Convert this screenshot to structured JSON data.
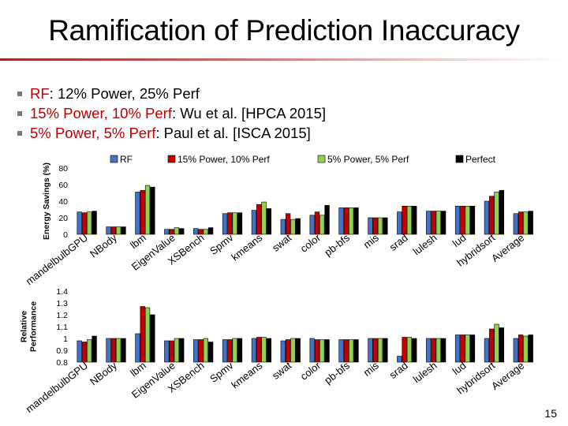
{
  "slide": {
    "title": "Ramification of Prediction Inaccuracy",
    "page_number": "15"
  },
  "bullets": [
    {
      "highlight": "RF",
      "rest": ": 12% Power, 25% Perf"
    },
    {
      "highlight": "15% Power, 10% Perf",
      "rest": ": Wu et al. [HPCA 2015]"
    },
    {
      "highlight": "5% Power, 5% Perf",
      "rest": ": Paul et al. [ISCA 2015]"
    }
  ],
  "colors": {
    "RF": "#4472c4",
    "15% Power, 10% Perf": "#c00000",
    "5% Power, 5% Perf": "#92d050",
    "Perfect": "#000000"
  },
  "chart_data": [
    {
      "type": "bar",
      "title": "",
      "ylabel": "Energy Savings (%)",
      "ylim": [
        0,
        80
      ],
      "yticks": [
        0,
        20,
        40,
        60,
        80
      ],
      "legend": [
        "RF",
        "15% Power, 10% Perf",
        "5% Power, 5% Perf",
        "Perfect"
      ],
      "categories": [
        "mandelbulbGPU",
        "NBody",
        "lbm",
        "EigenValue",
        "XSBench",
        "Spmv",
        "kmeans",
        "swat",
        "color",
        "pb-bfs",
        "mis",
        "srad",
        "lulesh",
        "lud",
        "hybridsort",
        "Average"
      ],
      "series": [
        {
          "name": "RF",
          "values": [
            27,
            9,
            51,
            6,
            7,
            25,
            29,
            18,
            23,
            32,
            20,
            27,
            28,
            34,
            40,
            25
          ]
        },
        {
          "name": "15% Power, 10% Perf",
          "values": [
            26,
            9,
            53,
            6,
            6,
            26,
            36,
            25,
            27,
            32,
            20,
            34,
            28,
            34,
            46,
            27
          ]
        },
        {
          "name": "5% Power, 5% Perf",
          "values": [
            27,
            9,
            59,
            8,
            6,
            26,
            39,
            18,
            23,
            32,
            20,
            34,
            28,
            34,
            51,
            27
          ]
        },
        {
          "name": "Perfect",
          "values": [
            28,
            9,
            57,
            7,
            8,
            26,
            31,
            19,
            35,
            32,
            20,
            34,
            28,
            34,
            53,
            28
          ]
        }
      ]
    },
    {
      "type": "bar",
      "title": "",
      "ylabel": "Relative Performance",
      "ylim": [
        0.8,
        1.4
      ],
      "yticks": [
        0.8,
        0.9,
        1,
        1.1,
        1.2,
        1.3,
        1.4
      ],
      "categories": [
        "mandelbulbGPU",
        "NBody",
        "lbm",
        "EigenValue",
        "XSBench",
        "Spmv",
        "kmeans",
        "swat",
        "color",
        "pb-bfs",
        "mis",
        "srad",
        "lulesh",
        "lud",
        "hybridsort",
        "Average"
      ],
      "series": [
        {
          "name": "RF",
          "values": [
            0.98,
            1.0,
            1.04,
            0.98,
            0.99,
            0.99,
            1.0,
            0.98,
            1.0,
            0.99,
            1.0,
            0.85,
            1.0,
            1.03,
            1.0,
            1.0
          ]
        },
        {
          "name": "15% Power, 10% Perf",
          "values": [
            0.97,
            1.0,
            1.27,
            0.98,
            0.99,
            0.99,
            1.01,
            0.99,
            0.99,
            0.99,
            1.0,
            1.01,
            1.0,
            1.03,
            1.08,
            1.03
          ]
        },
        {
          "name": "5% Power, 5% Perf",
          "values": [
            0.99,
            1.0,
            1.26,
            1.0,
            1.0,
            1.0,
            1.01,
            1.0,
            0.99,
            0.99,
            1.0,
            1.01,
            1.0,
            1.03,
            1.12,
            1.02
          ]
        },
        {
          "name": "Perfect",
          "values": [
            1.02,
            1.0,
            1.2,
            1.0,
            0.97,
            1.0,
            1.0,
            1.0,
            0.99,
            0.99,
            1.0,
            1.0,
            1.0,
            1.03,
            1.09,
            1.03
          ]
        }
      ]
    }
  ]
}
